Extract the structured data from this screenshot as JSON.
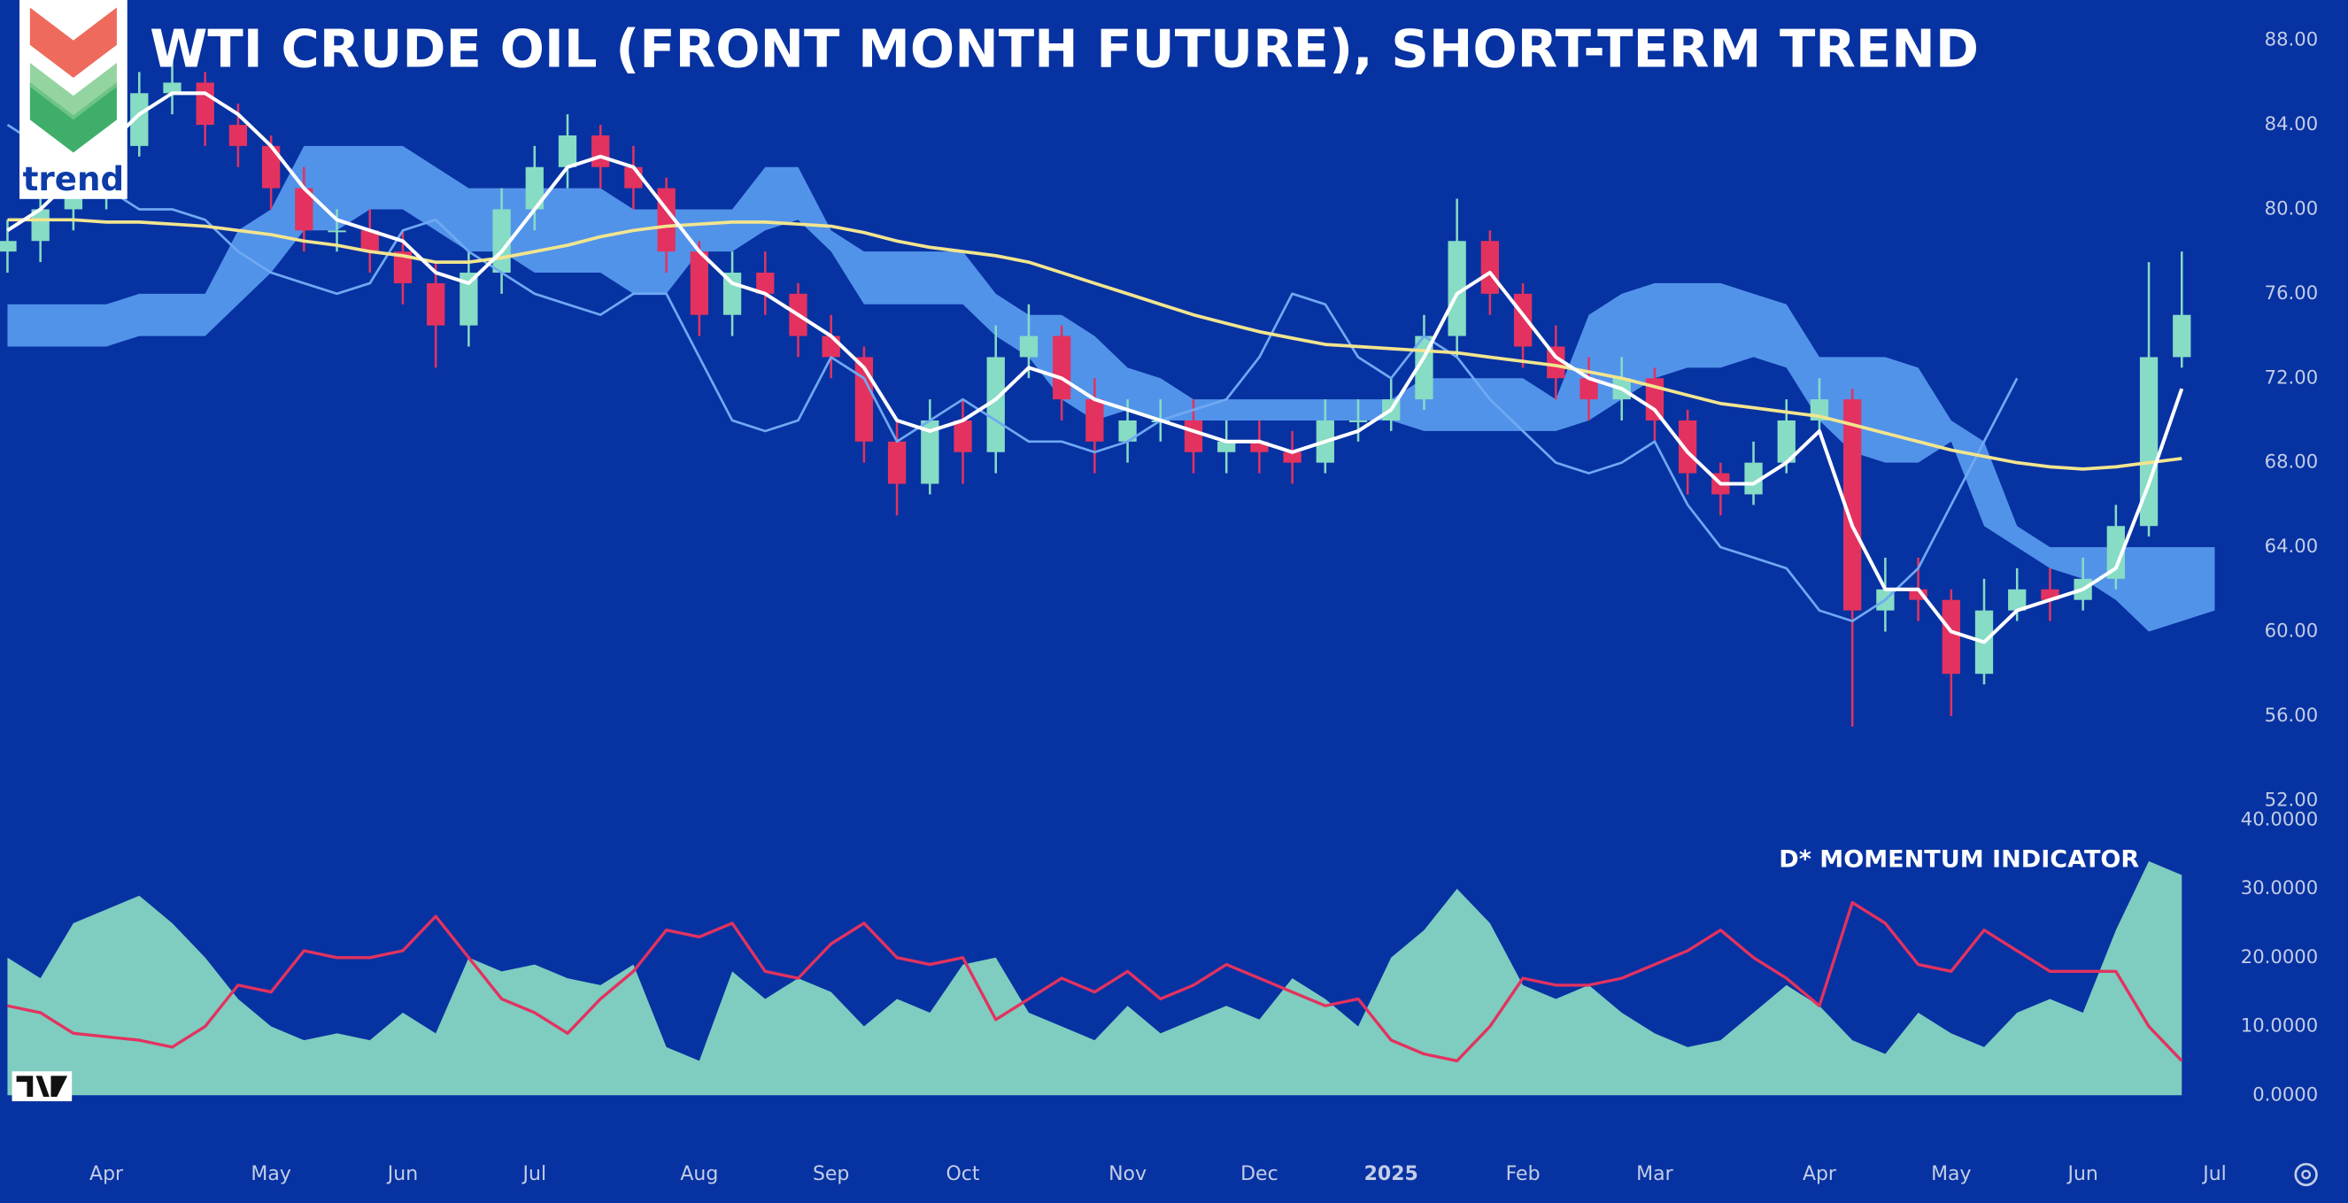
{
  "logo_text": "trend",
  "chart_data": [
    {
      "type": "candlestick",
      "title": "WTI CRUDE OIL (FRONT MONTH FUTURE), SHORT-TERM TREND",
      "categories": [
        null,
        null,
        null,
        "Apr",
        null,
        null,
        null,
        null,
        "May",
        null,
        null,
        null,
        "Jun",
        null,
        null,
        null,
        "Jul",
        null,
        null,
        null,
        null,
        "Aug",
        null,
        null,
        null,
        "Sep",
        null,
        null,
        null,
        "Oct",
        null,
        null,
        null,
        null,
        "Nov",
        null,
        null,
        null,
        "Dec",
        null,
        null,
        null,
        "2025",
        null,
        null,
        null,
        "Feb",
        null,
        null,
        null,
        "Mar",
        null,
        null,
        null,
        null,
        "Apr",
        null,
        null,
        null,
        "May",
        null,
        null,
        null,
        "Jun",
        null,
        null,
        null,
        "Jul"
      ],
      "open": [
        78,
        78.5,
        80,
        81,
        83,
        85.5,
        86,
        84,
        83,
        81,
        79,
        79,
        78,
        76.5,
        74.5,
        77,
        80,
        82,
        83.5,
        82,
        81,
        78,
        75,
        77,
        76,
        74,
        73,
        69,
        67,
        70,
        68.5,
        73,
        74,
        71,
        69,
        70,
        70,
        68.5,
        69,
        68.5,
        68,
        70,
        70,
        71,
        74,
        78.5,
        76,
        73.5,
        72,
        71,
        72,
        70,
        67.5,
        66.5,
        68,
        70,
        71,
        61,
        62,
        61.5,
        58,
        61,
        62,
        61.5,
        62.5,
        65,
        73,
        null
      ],
      "high": [
        79.5,
        81,
        82,
        84,
        86.5,
        87,
        86.5,
        85,
        83.5,
        82,
        80,
        80,
        79,
        77.5,
        78,
        81,
        83,
        84.5,
        84,
        83,
        81.5,
        78.5,
        78,
        78,
        76.5,
        75,
        73.5,
        70,
        71,
        71,
        74.5,
        75.5,
        74.5,
        72,
        71,
        71,
        71,
        70,
        70,
        69.5,
        71,
        71,
        72,
        75,
        80.5,
        79,
        76.5,
        74.5,
        73,
        73,
        72.5,
        70.5,
        68,
        69,
        71,
        72,
        71.5,
        63.5,
        63.5,
        62,
        62.5,
        63,
        63,
        63.5,
        66,
        77.5,
        78,
        null
      ],
      "low": [
        77,
        77.5,
        79,
        80,
        82.5,
        84.5,
        83,
        82,
        80,
        78,
        78,
        77,
        75.5,
        72.5,
        73.5,
        76,
        79,
        81,
        81,
        80,
        77,
        74,
        74,
        75,
        73,
        72,
        68,
        65.5,
        66.5,
        67,
        67.5,
        72,
        70,
        67.5,
        68,
        69,
        67.5,
        67.5,
        67.5,
        67,
        67.5,
        69,
        69.5,
        70.5,
        73,
        75,
        72.5,
        71,
        70,
        70,
        69,
        66.5,
        65.5,
        66,
        67.5,
        69.5,
        55.5,
        60,
        60.5,
        56,
        57.5,
        60.5,
        60.5,
        61,
        62,
        64.5,
        72.5,
        null
      ],
      "close": [
        78.5,
        80,
        81,
        83,
        85.5,
        86,
        84,
        83,
        81,
        79,
        79,
        78,
        76.5,
        74.5,
        77,
        80,
        82,
        83.5,
        82,
        81,
        78,
        75,
        77,
        76,
        74,
        73,
        69,
        67,
        70,
        68.5,
        73,
        74,
        71,
        69,
        70,
        70,
        68.5,
        69,
        68.5,
        68,
        70,
        70,
        71,
        74,
        78.5,
        76,
        73.5,
        72,
        71,
        72,
        70,
        67.5,
        66.5,
        68,
        70,
        71,
        61,
        62,
        61.5,
        58,
        61,
        62,
        61.5,
        62.5,
        65,
        73,
        75,
        null
      ],
      "up_color": "#86dcc4",
      "down_color": "#e3325f",
      "band": {
        "color": "#5b9df2",
        "upper": [
          75.5,
          75.5,
          75.5,
          75.5,
          76,
          76,
          76,
          79,
          80,
          83,
          83,
          83,
          83,
          82,
          81,
          81,
          81,
          81,
          81,
          80,
          80,
          80,
          80,
          82,
          82,
          79,
          78,
          78,
          78,
          78,
          76,
          75,
          75,
          74,
          72.5,
          72,
          71,
          71,
          71,
          71,
          71,
          71,
          71,
          72,
          72,
          72,
          72,
          71,
          75,
          76,
          76.5,
          76.5,
          76.5,
          76,
          75.5,
          73,
          73,
          73,
          72.5,
          70,
          69,
          65,
          64,
          64,
          64,
          64,
          64,
          64
        ],
        "lower": [
          73.5,
          73.5,
          73.5,
          73.5,
          74,
          74,
          74,
          75.5,
          77,
          79,
          79,
          80,
          80,
          79,
          78,
          78,
          77,
          77,
          77,
          76,
          76,
          78,
          78,
          79,
          79.5,
          78,
          75.5,
          75.5,
          75.5,
          75.5,
          74,
          73,
          71,
          70,
          70.5,
          70,
          70,
          70,
          70,
          70,
          70,
          70,
          70,
          69.5,
          69.5,
          69.5,
          69.5,
          69.5,
          70,
          71,
          72,
          72.5,
          72.5,
          73,
          72.5,
          70,
          68.5,
          68,
          68,
          69,
          65,
          64,
          63,
          62.5,
          61.5,
          60,
          60.5,
          61
        ]
      },
      "lines": [
        {
          "color": "#6fa9f2",
          "values": [
            84,
            83,
            82,
            81,
            80,
            80,
            79.5,
            78,
            77,
            76.5,
            76,
            76.5,
            79,
            79.5,
            78,
            77,
            76,
            75.5,
            75,
            76,
            76,
            73,
            70,
            69.5,
            70,
            73,
            72,
            69,
            70,
            71,
            70,
            69,
            69,
            68.5,
            69,
            70,
            70.5,
            71,
            73,
            76,
            75.5,
            73,
            72,
            74,
            73,
            71,
            69.5,
            68,
            67.5,
            68,
            69,
            66,
            64,
            63.5,
            63,
            61,
            60.5,
            61.5,
            63,
            66,
            69,
            72,
            null,
            null,
            null,
            null,
            null,
            null
          ]
        },
        {
          "color": "#f2e58e",
          "values": [
            79.5,
            79.5,
            79.5,
            79.4,
            79.4,
            79.3,
            79.2,
            79,
            78.8,
            78.5,
            78.3,
            78,
            77.8,
            77.5,
            77.5,
            77.7,
            78,
            78.3,
            78.7,
            79,
            79.2,
            79.3,
            79.4,
            79.4,
            79.3,
            79.2,
            78.9,
            78.5,
            78.2,
            78,
            77.8,
            77.5,
            77,
            76.5,
            76,
            75.5,
            75,
            74.6,
            74.2,
            73.9,
            73.6,
            73.5,
            73.4,
            73.3,
            73.2,
            73,
            72.8,
            72.6,
            72.3,
            72,
            71.6,
            71.2,
            70.8,
            70.6,
            70.4,
            70.2,
            69.8,
            69.4,
            69,
            68.6,
            68.3,
            68,
            67.8,
            67.7,
            67.8,
            68,
            68.2,
            null
          ]
        },
        {
          "color": "#ffffff",
          "values": [
            79,
            80,
            81.5,
            83,
            84.5,
            85.5,
            85.5,
            84.5,
            83,
            81,
            79.5,
            79,
            78.5,
            77,
            76.5,
            78,
            80,
            82,
            82.5,
            82,
            80,
            78,
            76.5,
            76,
            75,
            74,
            72.5,
            70,
            69.5,
            70,
            71,
            72.5,
            72,
            71,
            70.5,
            70,
            69.5,
            69,
            69,
            68.5,
            69,
            69.5,
            70.5,
            73,
            76,
            77,
            75,
            73,
            72,
            71.5,
            70.5,
            68.5,
            67,
            67,
            68,
            69.5,
            65,
            62,
            62,
            60,
            59.5,
            61,
            61.5,
            62,
            63,
            67,
            71.5,
            null
          ]
        }
      ],
      "ylim": [
        52,
        88
      ],
      "yticks": [
        {
          "value": 52,
          "label": "52.00"
        },
        {
          "value": 56,
          "label": "56.00"
        },
        {
          "value": 60,
          "label": "60.00"
        },
        {
          "value": 64,
          "label": "64.00"
        },
        {
          "value": 68,
          "label": "68.00"
        },
        {
          "value": 72,
          "label": "72.00"
        },
        {
          "value": 76,
          "label": "76.00"
        },
        {
          "value": 80,
          "label": "80.00"
        },
        {
          "value": 84,
          "label": "84.00"
        },
        {
          "value": 88,
          "label": "88.00"
        }
      ],
      "grid": false
    },
    {
      "type": "area",
      "title": "D* MOMENTUM INDICATOR",
      "series": [
        {
          "color": "#7ecdc0",
          "kind": "area",
          "values": [
            20,
            17,
            25,
            27,
            29,
            25,
            20,
            14,
            10,
            8,
            9,
            8,
            12,
            9,
            20,
            18,
            19,
            17,
            16,
            19,
            7,
            5,
            18,
            14,
            17,
            15,
            10,
            14,
            12,
            19,
            20,
            12,
            10,
            8,
            13,
            9,
            11,
            13,
            11,
            17,
            14,
            10,
            20,
            24,
            30,
            25,
            16,
            14,
            16,
            12,
            9,
            7,
            8,
            12,
            16,
            13,
            8,
            6,
            12,
            9,
            7,
            12,
            14,
            12,
            24,
            34,
            32,
            null
          ]
        },
        {
          "color": "#e3325f",
          "kind": "line",
          "values": [
            13,
            12,
            9,
            8.5,
            8,
            7,
            10,
            16,
            15,
            21,
            20,
            20,
            21,
            26,
            20,
            14,
            12,
            9,
            14,
            18,
            24,
            23,
            25,
            18,
            17,
            22,
            25,
            20,
            19,
            20,
            11,
            14,
            17,
            15,
            18,
            14,
            16,
            19,
            17,
            15,
            13,
            14,
            8,
            6,
            5,
            10,
            17,
            16,
            16,
            17,
            19,
            21,
            24,
            20,
            17,
            13,
            28,
            25,
            19,
            18,
            24,
            21,
            18,
            18,
            18,
            10,
            5,
            null
          ]
        }
      ],
      "ylim": [
        0,
        40
      ],
      "yticks": [
        {
          "value": 0,
          "label": "0.0000"
        },
        {
          "value": 10,
          "label": "10.0000"
        },
        {
          "value": 20,
          "label": "20.0000"
        },
        {
          "value": 30,
          "label": "30.0000"
        },
        {
          "value": 40,
          "label": "40.0000"
        }
      ],
      "grid": false
    }
  ]
}
